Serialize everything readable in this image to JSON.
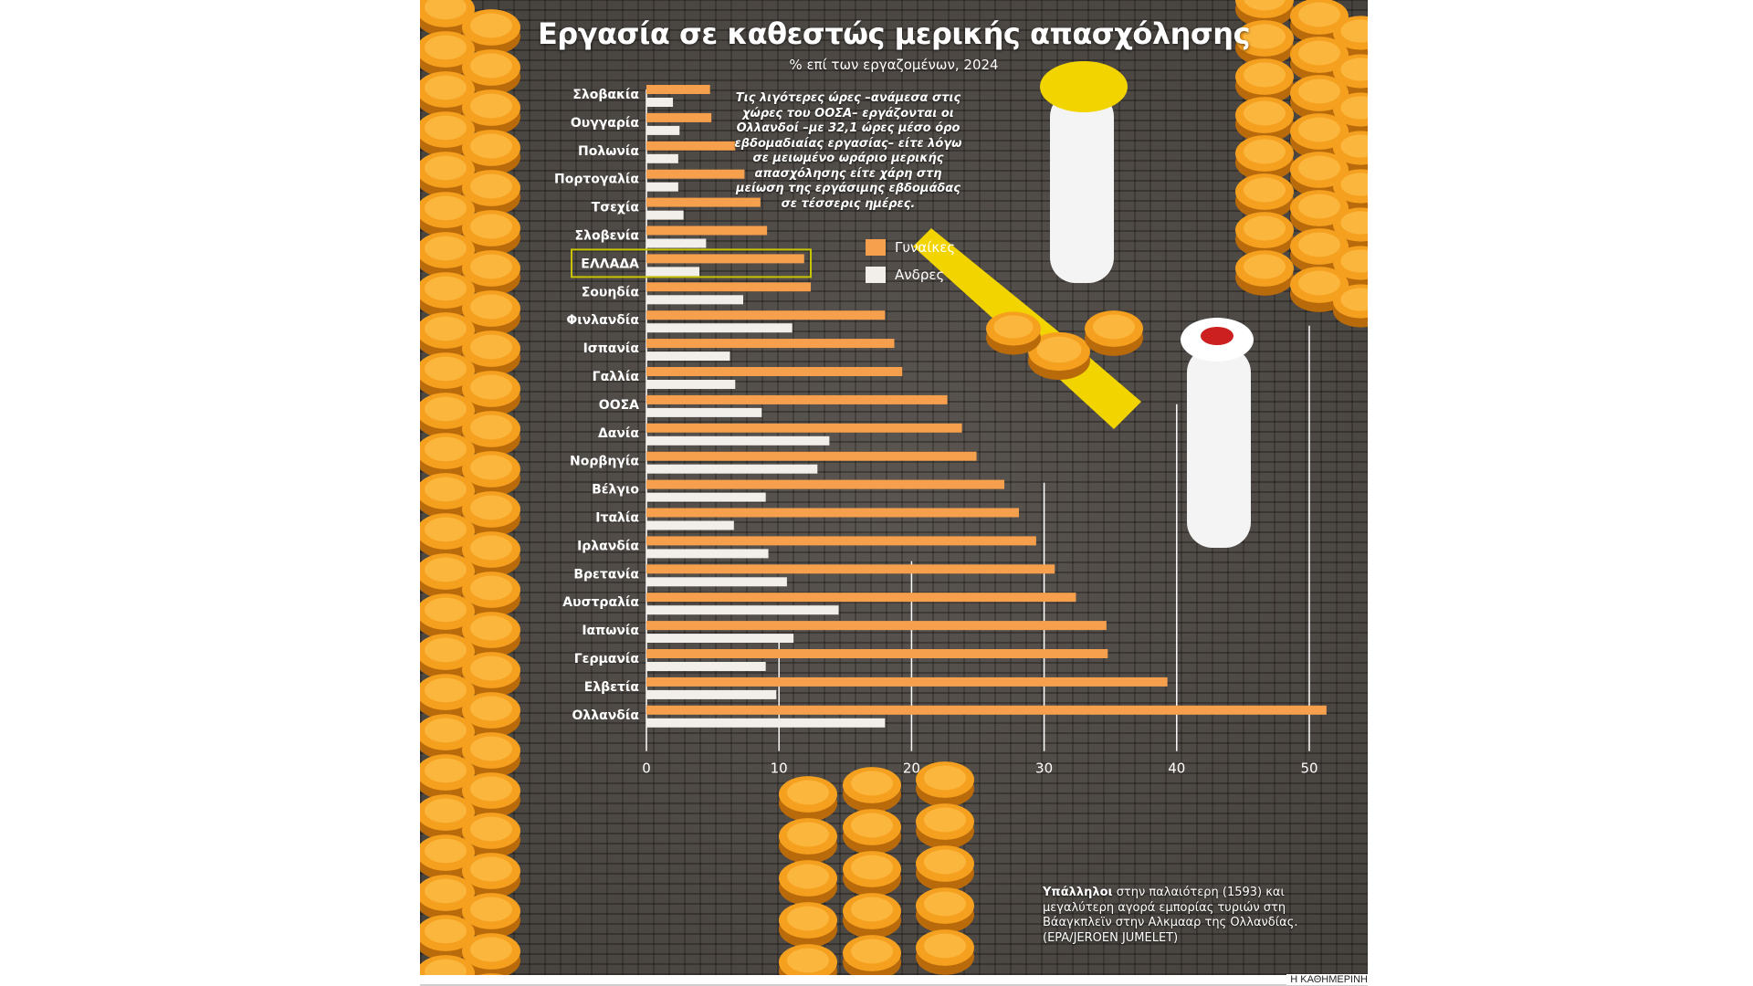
{
  "colors": {
    "women": "#f6a04d",
    "men": "#f2efea",
    "grid": "#ffffff",
    "highlight": "#c8c400",
    "cheese": "#f5a01f"
  },
  "chart_data": {
    "type": "bar",
    "title": "Εργασία σε καθεστώς μερικής απασχόλησης",
    "subtitle": "% επί των εργαζομένων, 2024",
    "categories": [
      "Σλοβακία",
      "Ουγγαρία",
      "Πολωνία",
      "Πορτογαλία",
      "Τσεχία",
      "Σλοβενία",
      "ΕΛΛΑΔΑ",
      "Σουηδία",
      "Φινλανδία",
      "Ισπανία",
      "Γαλλία",
      "ΟΟΣΑ",
      "Δανία",
      "Νορβηγία",
      "Βέλγιο",
      "Ιταλία",
      "Ιρλανδία",
      "Βρετανία",
      "Αυστραλία",
      "Ιαπωνία",
      "Γερμανία",
      "Ελβετία",
      "Ολλανδία"
    ],
    "highlight_category": "ΕΛΛΑΔΑ",
    "series": [
      {
        "name": "Γυναίκες",
        "values": [
          4.8,
          4.9,
          6.7,
          7.4,
          8.6,
          9.1,
          11.9,
          12.4,
          18.0,
          18.7,
          19.3,
          22.7,
          23.8,
          24.9,
          27.0,
          28.1,
          29.4,
          30.8,
          32.4,
          34.7,
          34.8,
          39.3,
          51.3
        ]
      },
      {
        "name": "Ανδρες",
        "values": [
          2.0,
          2.5,
          2.4,
          2.4,
          2.8,
          4.5,
          4.0,
          7.3,
          11.0,
          6.3,
          6.7,
          8.7,
          13.8,
          12.9,
          9.0,
          6.6,
          9.2,
          10.6,
          14.5,
          11.1,
          9.0,
          9.8,
          18.0
        ]
      }
    ],
    "xlim": [
      0,
      52
    ],
    "xticks": [
      0,
      10,
      20,
      30,
      40,
      50
    ],
    "xlabel": "",
    "ylabel": "",
    "grid": true,
    "legend": [
      {
        "label": "Γυναίκες"
      },
      {
        "label": "Ανδρες"
      }
    ],
    "annotation": "Τις λιγότερες ώρες –ανάμεσα στις χώρες του ΟΟΣΑ– εργάζονται οι Ολλανδοί –με 32,1 ώρες μέσο όρο εβδομαδιαίας εργασίας– είτε λόγω σε μειωμένο ωράριο μερικής απασχόλησης είτε χάρη στη μείωση της εργάσιμης εβδομάδας σε τέσσερις ημέρες."
  },
  "caption": {
    "bold": "Υπάλληλοι",
    "text": " στην παλαιότερη (1593) και μεγαλύτερη αγορά εμπορίας τυριών στη Βάαγκπλεϊν στην Αλκμααρ της Ολλανδίας.",
    "credit": "(EPA/JEROEN JUMELET)"
  },
  "publisher": "Η ΚΑΘΗΜΕΡΙΝΗ"
}
